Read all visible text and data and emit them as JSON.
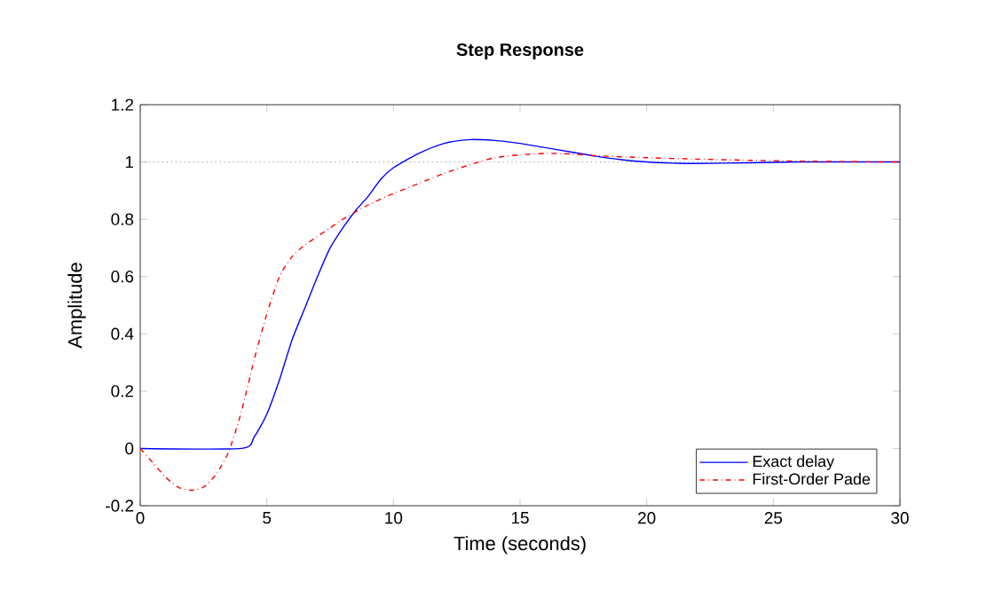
{
  "chart_data": {
    "type": "line",
    "title": "Step Response",
    "xlabel": "Time (seconds)",
    "ylabel": "Amplitude",
    "xlim": [
      0,
      30
    ],
    "ylim": [
      -0.2,
      1.2
    ],
    "xticks": [
      0,
      5,
      10,
      15,
      20,
      25,
      30
    ],
    "yticks": [
      -0.2,
      0,
      0.2,
      0.4,
      0.6,
      0.8,
      1,
      1.2
    ],
    "grid": false,
    "legend": "bottom right",
    "marker": "none",
    "ref_lines": [
      {
        "axis": "y",
        "value": 1,
        "color": "#808080",
        "line_style": "dotted"
      }
    ],
    "series": [
      {
        "name": "Exact delay",
        "color": "#0000ff",
        "line_style": "solid",
        "x": [
          0,
          4,
          4.5,
          5,
          5.5,
          6,
          6.5,
          7,
          7.5,
          8,
          8.5,
          9,
          9.5,
          10,
          11,
          12,
          13,
          14,
          15,
          16,
          17,
          18,
          19,
          20,
          21,
          22,
          24,
          26,
          28,
          30
        ],
        "values": [
          0,
          0,
          0.04,
          0.12,
          0.24,
          0.38,
          0.49,
          0.6,
          0.7,
          0.77,
          0.83,
          0.88,
          0.94,
          0.98,
          1.03,
          1.065,
          1.078,
          1.075,
          1.065,
          1.05,
          1.035,
          1.02,
          1.008,
          1.0,
          0.996,
          0.995,
          0.997,
          1.0,
          1.0,
          1.0
        ]
      },
      {
        "name": "First-Order Pade",
        "color": "#ff0000",
        "line_style": "dashdot",
        "x": [
          0,
          0.5,
          1,
          1.5,
          2,
          2.5,
          3,
          3.5,
          4,
          4.5,
          5,
          5.5,
          6,
          6.5,
          7,
          7.5,
          8,
          9,
          10,
          11,
          12,
          13,
          14,
          15,
          16,
          17,
          18,
          20,
          22,
          24,
          26,
          28,
          30
        ],
        "values": [
          0,
          -0.05,
          -0.1,
          -0.135,
          -0.146,
          -0.135,
          -0.09,
          -0.01,
          0.13,
          0.31,
          0.47,
          0.6,
          0.67,
          0.71,
          0.74,
          0.77,
          0.8,
          0.85,
          0.89,
          0.925,
          0.96,
          0.99,
          1.015,
          1.025,
          1.03,
          1.028,
          1.022,
          1.015,
          1.01,
          1.006,
          1.003,
          1.001,
          1.0
        ]
      }
    ]
  }
}
